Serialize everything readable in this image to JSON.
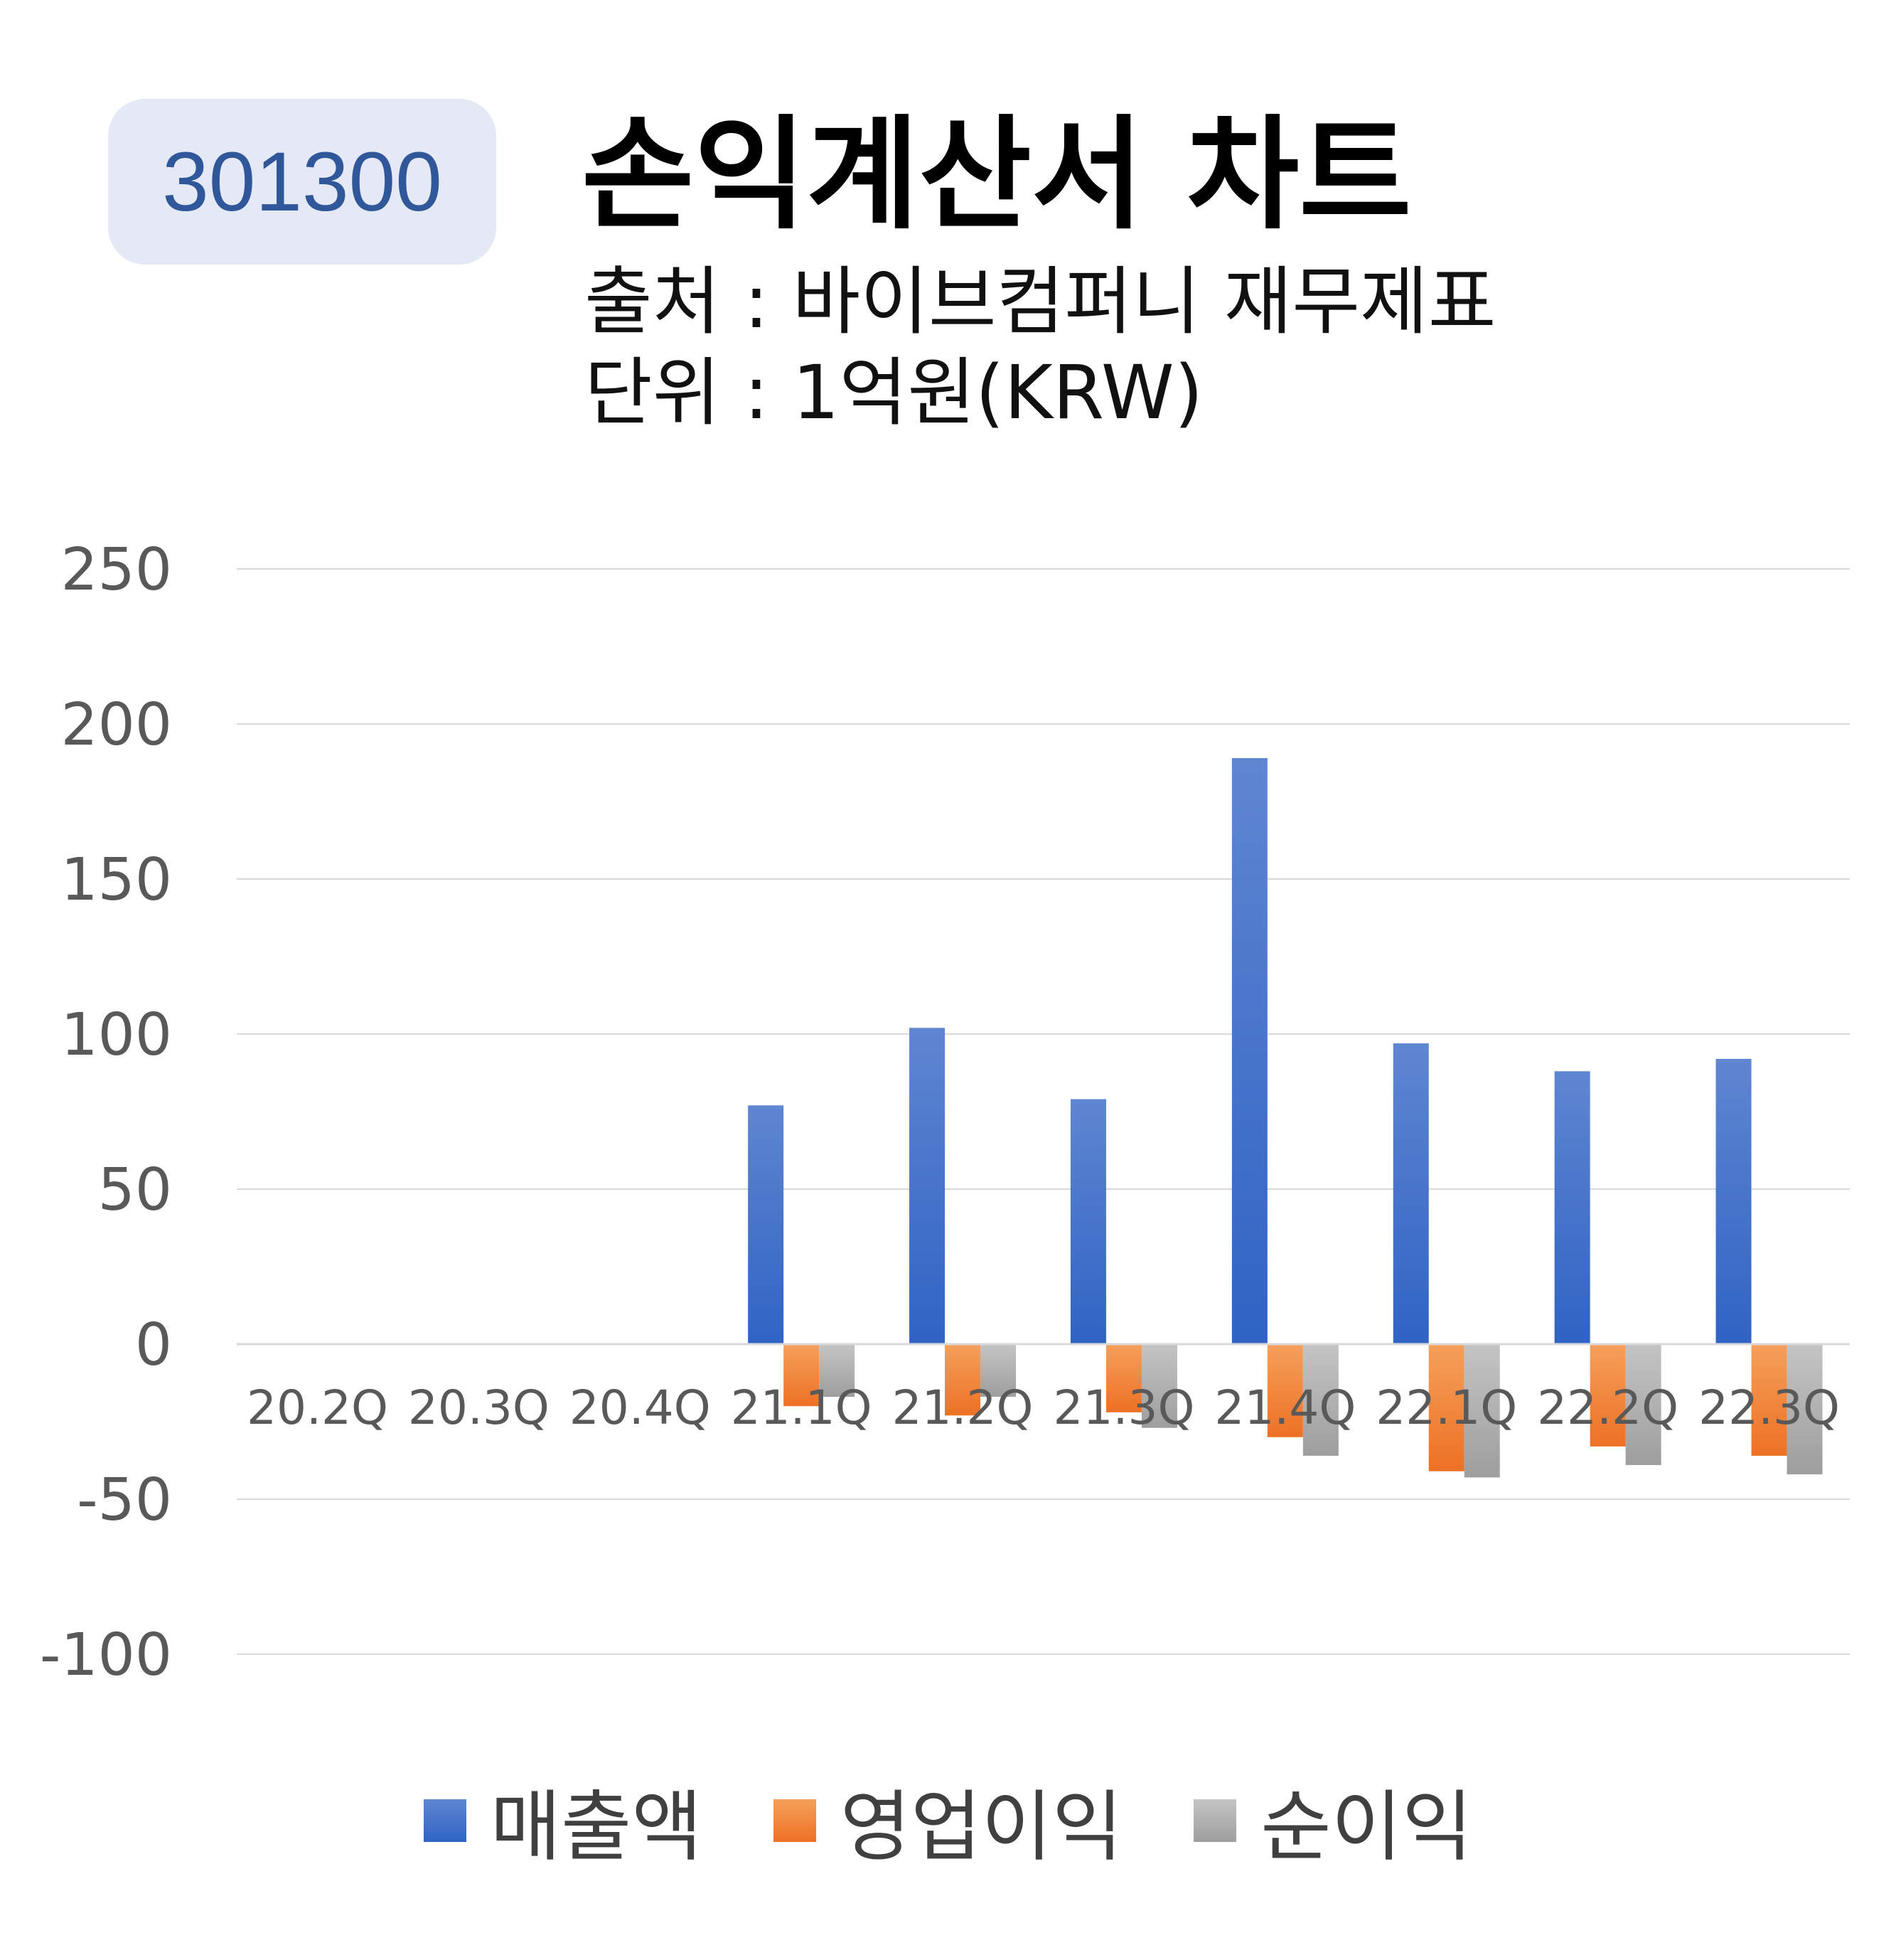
{
  "badge": {
    "code": "301300"
  },
  "header": {
    "title": "손익계산서 차트",
    "source": "출처 : 바이브컴퍼니 재무제표",
    "unit": "단위 : 1억원(KRW)"
  },
  "colors": {
    "revenue_top": "#5f86d1",
    "revenue_bottom": "#2f63c4",
    "operating_top": "#f5a05b",
    "operating_bottom": "#ed7124",
    "net_top": "#c4c4c4",
    "net_bottom": "#9e9e9e",
    "grid": "#d9d9d9",
    "axis_text": "#595959"
  },
  "chart_data": {
    "type": "bar",
    "categories": [
      "20.2Q",
      "20.3Q",
      "20.4Q",
      "21.1Q",
      "21.2Q",
      "21.3Q",
      "21.4Q",
      "22.1Q",
      "22.2Q",
      "22.3Q"
    ],
    "series": [
      {
        "name": "매출액",
        "values": [
          null,
          null,
          null,
          77,
          102,
          79,
          189,
          97,
          88,
          92
        ]
      },
      {
        "name": "영업이익",
        "values": [
          null,
          null,
          null,
          -20,
          -23,
          -22,
          -30,
          -41,
          -33,
          -36
        ]
      },
      {
        "name": "순이익",
        "values": [
          null,
          null,
          null,
          -17,
          -17,
          -27,
          -36,
          -43,
          -39,
          -42
        ]
      }
    ],
    "ylim": [
      -100,
      250
    ],
    "yticks": [
      250,
      200,
      150,
      100,
      50,
      0,
      -50,
      -100
    ],
    "grid": true,
    "legend_position": "bottom"
  }
}
